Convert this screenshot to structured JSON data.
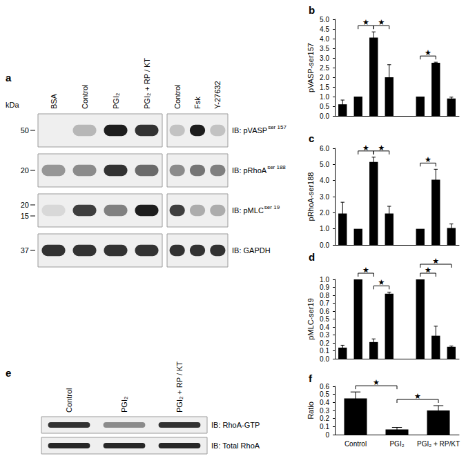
{
  "chart_data": [
    {
      "type": "bar",
      "title": "b",
      "ylabel": "pVASP-ser157",
      "categories": [
        null,
        null,
        null,
        null,
        null,
        null,
        null,
        null
      ],
      "values": [
        0.6,
        1.0,
        4.05,
        2.0,
        null,
        1.0,
        2.75,
        0.9
      ],
      "errors": [
        0.22,
        0,
        0.3,
        0.65,
        null,
        0,
        0.03,
        0.07
      ],
      "color": "#000000",
      "ylim": [
        0,
        5
      ],
      "yticks": [
        {
          "value": 0,
          "label": "0.0"
        },
        {
          "value": 0.5,
          "label": "0.5"
        },
        {
          "value": 1,
          "label": "1.0"
        },
        {
          "value": 1.5,
          "label": "1.5"
        },
        {
          "value": 2,
          "label": "2.0"
        },
        {
          "value": 2.5,
          "label": "2.5"
        },
        {
          "value": 3,
          "label": "3.0"
        },
        {
          "value": 3.5,
          "label": "3.5"
        },
        {
          "value": 4,
          "label": "4.0"
        },
        {
          "value": 4.5,
          "label": "4.5"
        },
        {
          "value": 5,
          "label": "5.0"
        }
      ],
      "annotations": [
        {
          "from": 1,
          "to": 2,
          "text": "★"
        },
        {
          "from": 2,
          "to": 3,
          "text": "★"
        },
        {
          "from": 5,
          "to": 6,
          "text": "★"
        }
      ]
    },
    {
      "type": "bar",
      "title": "c",
      "ylabel": "pRhoA-ser188",
      "categories": [
        null,
        null,
        null,
        null,
        null,
        null,
        null,
        null
      ],
      "values": [
        1.95,
        1.0,
        5.15,
        1.95,
        null,
        1.0,
        4.05,
        1.05
      ],
      "errors": [
        0.7,
        0,
        0.3,
        0.45,
        null,
        0,
        0.65,
        0.25
      ],
      "color": "#000000",
      "ylim": [
        0,
        6
      ],
      "yticks": [
        {
          "value": 0,
          "label": "0.0"
        },
        {
          "value": 1,
          "label": "1.0"
        },
        {
          "value": 2,
          "label": "2.0"
        },
        {
          "value": 3,
          "label": "3.0"
        },
        {
          "value": 4,
          "label": "4.0"
        },
        {
          "value": 5,
          "label": "5.0"
        },
        {
          "value": 6,
          "label": "6.0"
        }
      ],
      "annotations": [
        {
          "from": 1,
          "to": 2,
          "text": "★"
        },
        {
          "from": 2,
          "to": 3,
          "text": "★"
        },
        {
          "from": 5,
          "to": 6,
          "text": "★"
        }
      ]
    },
    {
      "type": "bar",
      "title": "d",
      "ylabel": "pMLC-ser19",
      "categories": [
        null,
        null,
        null,
        null,
        null,
        null,
        null,
        null
      ],
      "values": [
        0.14,
        1.0,
        0.21,
        0.82,
        null,
        1.0,
        0.29,
        0.15
      ],
      "errors": [
        0.03,
        0,
        0.04,
        0.02,
        null,
        0,
        0.12,
        0.01
      ],
      "color": "#000000",
      "ylim": [
        0,
        1
      ],
      "yticks": [
        {
          "value": 0,
          "label": "0.0"
        },
        0.1,
        0.2,
        0.3,
        0.4,
        0.5,
        0.6,
        0.7,
        0.8,
        0.9,
        {
          "value": 1,
          "label": "1.0"
        }
      ],
      "annotations": [
        {
          "from": 1,
          "to": 2,
          "text": "★"
        },
        {
          "from": 2,
          "to": 3,
          "text": "★"
        },
        {
          "from": 5,
          "to": 6,
          "text": "★"
        },
        {
          "from": 5,
          "to": 7,
          "text": "★"
        }
      ]
    },
    {
      "type": "bar",
      "title": "f",
      "ylabel": "Ratio",
      "categories": [
        "Control",
        "PGI₂",
        "PGI₂ + RP/KT"
      ],
      "values": [
        0.45,
        0.065,
        0.3
      ],
      "errors": [
        0.08,
        0.025,
        0.06
      ],
      "color": "#000000",
      "ylim": [
        0,
        0.6
      ],
      "yticks": [
        0,
        0.1,
        0.2,
        0.3,
        0.4,
        0.5,
        0.6
      ],
      "annotations": [
        {
          "from": 0,
          "to": 1,
          "text": "★"
        },
        {
          "from": 1,
          "to": 2,
          "text": "★"
        }
      ]
    }
  ],
  "blots": [
    {
      "title": "a",
      "unit": "kDa",
      "lanes": [
        [
          "BSA",
          "Control",
          "PGI₂",
          "PGI₂ + RP / KT"
        ],
        [
          "Control",
          "Fsk",
          "Y-27632"
        ]
      ],
      "rows": [
        {
          "label": "IB: pVASP",
          "sup": "ser 157",
          "markers": [
            50
          ],
          "bands": [
            [
              0,
              0.25,
              0.95,
              0.85
            ],
            [
              0.2,
              0.95,
              0.2
            ]
          ]
        },
        {
          "label": "IB: pRhoA",
          "sup": "ser 188",
          "markers": [
            20
          ],
          "bands": [
            [
              0.4,
              0.45,
              0.85,
              0.6
            ],
            [
              0.45,
              0.55,
              0.5
            ]
          ]
        },
        {
          "label": "IB: pMLC",
          "sup": "ser 19",
          "markers": [
            20,
            15
          ],
          "bands": [
            [
              0.1,
              0.8,
              0.5,
              0.95
            ],
            [
              0.8,
              0.3,
              0.3
            ]
          ]
        },
        {
          "label": "IB: GAPDH",
          "markers": [
            37
          ],
          "bands": [
            [
              0.85,
              0.85,
              0.85,
              0.85
            ],
            [
              0.85,
              0.85,
              0.85
            ]
          ]
        }
      ]
    },
    {
      "title": "e",
      "lanes": [
        [
          "Control",
          "PGI₂",
          "PGI₂ + RP / KT"
        ]
      ],
      "rows": [
        {
          "label": "IB: RhoA-GTP",
          "bands": [
            [
              0.85,
              0.45,
              0.85
            ]
          ]
        },
        {
          "label": "IB: Total RhoA",
          "bands": [
            [
              0.9,
              0.9,
              0.9
            ]
          ]
        }
      ]
    }
  ]
}
